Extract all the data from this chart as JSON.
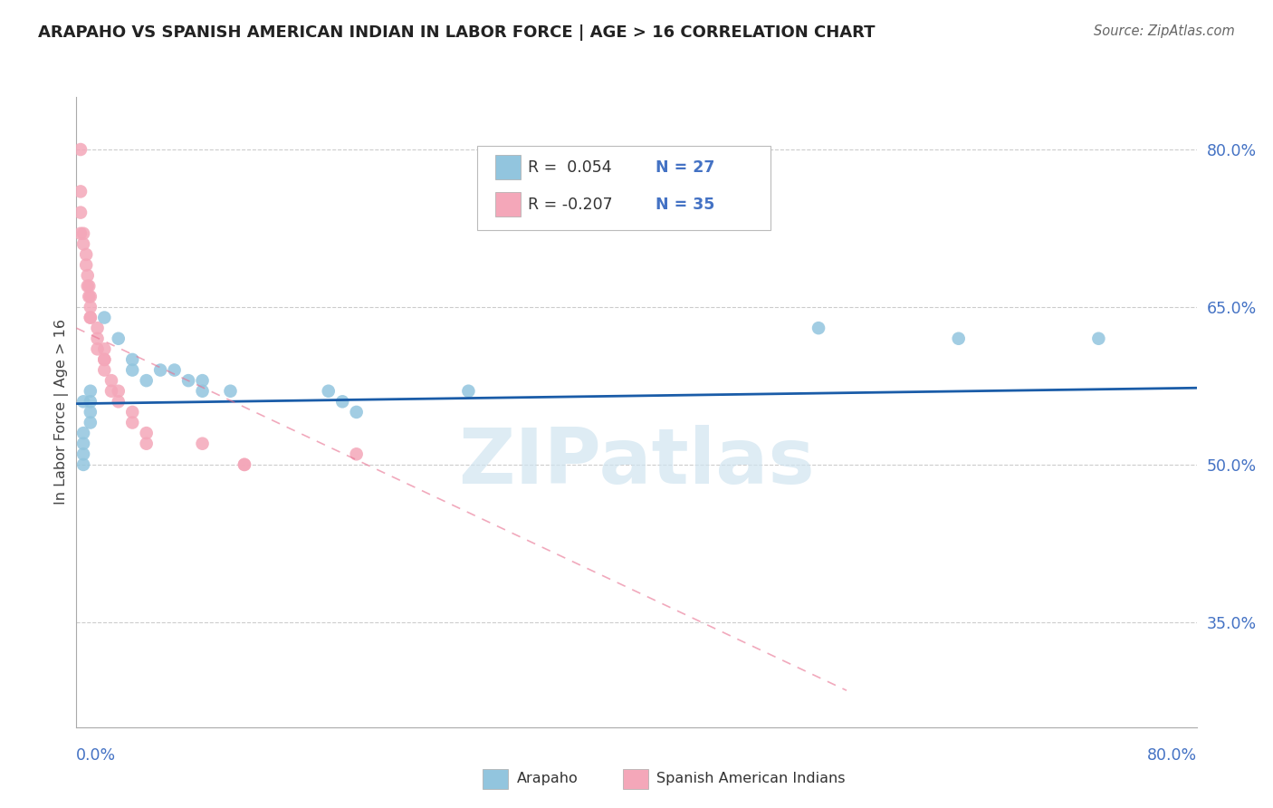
{
  "title": "ARAPAHO VS SPANISH AMERICAN INDIAN IN LABOR FORCE | AGE > 16 CORRELATION CHART",
  "source": "Source: ZipAtlas.com",
  "ylabel": "In Labor Force | Age > 16",
  "yticks": [
    {
      "label": "80.0%",
      "value": 0.8
    },
    {
      "label": "65.0%",
      "value": 0.65
    },
    {
      "label": "50.0%",
      "value": 0.5
    },
    {
      "label": "35.0%",
      "value": 0.35
    }
  ],
  "legend_r_blue": "R =  0.054",
  "legend_n_blue": "N = 27",
  "legend_r_pink": "R = -0.207",
  "legend_n_pink": "N = 35",
  "legend_label_blue": "Arapaho",
  "legend_label_pink": "Spanish American Indians",
  "blue_scatter": [
    [
      0.005,
      0.56
    ],
    [
      0.005,
      0.53
    ],
    [
      0.005,
      0.52
    ],
    [
      0.005,
      0.51
    ],
    [
      0.005,
      0.5
    ],
    [
      0.01,
      0.57
    ],
    [
      0.01,
      0.55
    ],
    [
      0.01,
      0.54
    ],
    [
      0.01,
      0.56
    ],
    [
      0.02,
      0.64
    ],
    [
      0.03,
      0.62
    ],
    [
      0.04,
      0.6
    ],
    [
      0.04,
      0.59
    ],
    [
      0.05,
      0.58
    ],
    [
      0.06,
      0.59
    ],
    [
      0.07,
      0.59
    ],
    [
      0.08,
      0.58
    ],
    [
      0.09,
      0.57
    ],
    [
      0.09,
      0.58
    ],
    [
      0.11,
      0.57
    ],
    [
      0.18,
      0.57
    ],
    [
      0.19,
      0.56
    ],
    [
      0.2,
      0.55
    ],
    [
      0.28,
      0.57
    ],
    [
      0.53,
      0.63
    ],
    [
      0.63,
      0.62
    ],
    [
      0.73,
      0.62
    ]
  ],
  "pink_scatter": [
    [
      0.003,
      0.8
    ],
    [
      0.003,
      0.76
    ],
    [
      0.003,
      0.74
    ],
    [
      0.003,
      0.72
    ],
    [
      0.005,
      0.72
    ],
    [
      0.005,
      0.71
    ],
    [
      0.007,
      0.7
    ],
    [
      0.007,
      0.69
    ],
    [
      0.008,
      0.68
    ],
    [
      0.008,
      0.67
    ],
    [
      0.009,
      0.67
    ],
    [
      0.009,
      0.66
    ],
    [
      0.01,
      0.66
    ],
    [
      0.01,
      0.65
    ],
    [
      0.01,
      0.64
    ],
    [
      0.01,
      0.64
    ],
    [
      0.015,
      0.63
    ],
    [
      0.015,
      0.62
    ],
    [
      0.015,
      0.61
    ],
    [
      0.02,
      0.61
    ],
    [
      0.02,
      0.6
    ],
    [
      0.02,
      0.6
    ],
    [
      0.02,
      0.59
    ],
    [
      0.025,
      0.58
    ],
    [
      0.025,
      0.57
    ],
    [
      0.03,
      0.57
    ],
    [
      0.03,
      0.56
    ],
    [
      0.04,
      0.55
    ],
    [
      0.04,
      0.54
    ],
    [
      0.05,
      0.53
    ],
    [
      0.05,
      0.52
    ],
    [
      0.09,
      0.52
    ],
    [
      0.12,
      0.5
    ],
    [
      0.12,
      0.5
    ],
    [
      0.2,
      0.51
    ]
  ],
  "blue_line_x": [
    0.0,
    0.8
  ],
  "blue_line_y_start": 0.558,
  "blue_line_y_end": 0.573,
  "pink_line_x": [
    0.0,
    0.55
  ],
  "pink_line_y_start": 0.63,
  "pink_line_y_end": 0.285,
  "xmin": 0.0,
  "xmax": 0.8,
  "ymin": 0.25,
  "ymax": 0.85,
  "title_color": "#222222",
  "blue_color": "#92c5de",
  "pink_color": "#f4a7b9",
  "trendline_blue": "#1a5ca8",
  "trendline_pink": "#e87090",
  "grid_color": "#cccccc",
  "ytick_color": "#4472c4",
  "watermark": "ZIPatlas",
  "watermark_color": "#d0e4f0",
  "background_color": "#ffffff",
  "legend_r_color": "#333333",
  "legend_n_color": "#4472c4"
}
